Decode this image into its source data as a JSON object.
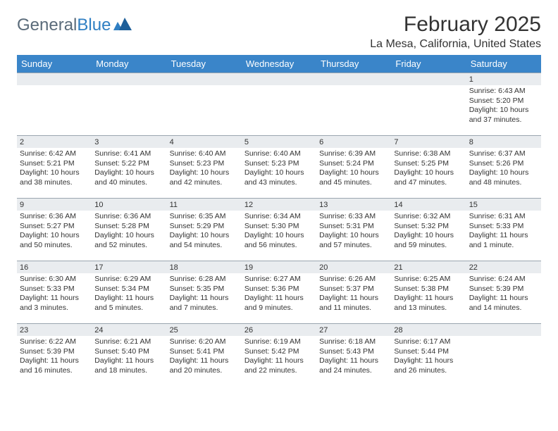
{
  "logo": {
    "text1": "General",
    "text2": "Blue"
  },
  "title": "February 2025",
  "location": "La Mesa, California, United States",
  "header_bg": "#3a85c9",
  "daynum_bg": "#e9ecef",
  "border_color": "#9aa5af",
  "day_names": [
    "Sunday",
    "Monday",
    "Tuesday",
    "Wednesday",
    "Thursday",
    "Friday",
    "Saturday"
  ],
  "weeks": [
    [
      {
        "n": "",
        "sr": "",
        "ss": "",
        "dl": ""
      },
      {
        "n": "",
        "sr": "",
        "ss": "",
        "dl": ""
      },
      {
        "n": "",
        "sr": "",
        "ss": "",
        "dl": ""
      },
      {
        "n": "",
        "sr": "",
        "ss": "",
        "dl": ""
      },
      {
        "n": "",
        "sr": "",
        "ss": "",
        "dl": ""
      },
      {
        "n": "",
        "sr": "",
        "ss": "",
        "dl": ""
      },
      {
        "n": "1",
        "sr": "Sunrise: 6:43 AM",
        "ss": "Sunset: 5:20 PM",
        "dl": "Daylight: 10 hours and 37 minutes."
      }
    ],
    [
      {
        "n": "2",
        "sr": "Sunrise: 6:42 AM",
        "ss": "Sunset: 5:21 PM",
        "dl": "Daylight: 10 hours and 38 minutes."
      },
      {
        "n": "3",
        "sr": "Sunrise: 6:41 AM",
        "ss": "Sunset: 5:22 PM",
        "dl": "Daylight: 10 hours and 40 minutes."
      },
      {
        "n": "4",
        "sr": "Sunrise: 6:40 AM",
        "ss": "Sunset: 5:23 PM",
        "dl": "Daylight: 10 hours and 42 minutes."
      },
      {
        "n": "5",
        "sr": "Sunrise: 6:40 AM",
        "ss": "Sunset: 5:23 PM",
        "dl": "Daylight: 10 hours and 43 minutes."
      },
      {
        "n": "6",
        "sr": "Sunrise: 6:39 AM",
        "ss": "Sunset: 5:24 PM",
        "dl": "Daylight: 10 hours and 45 minutes."
      },
      {
        "n": "7",
        "sr": "Sunrise: 6:38 AM",
        "ss": "Sunset: 5:25 PM",
        "dl": "Daylight: 10 hours and 47 minutes."
      },
      {
        "n": "8",
        "sr": "Sunrise: 6:37 AM",
        "ss": "Sunset: 5:26 PM",
        "dl": "Daylight: 10 hours and 48 minutes."
      }
    ],
    [
      {
        "n": "9",
        "sr": "Sunrise: 6:36 AM",
        "ss": "Sunset: 5:27 PM",
        "dl": "Daylight: 10 hours and 50 minutes."
      },
      {
        "n": "10",
        "sr": "Sunrise: 6:36 AM",
        "ss": "Sunset: 5:28 PM",
        "dl": "Daylight: 10 hours and 52 minutes."
      },
      {
        "n": "11",
        "sr": "Sunrise: 6:35 AM",
        "ss": "Sunset: 5:29 PM",
        "dl": "Daylight: 10 hours and 54 minutes."
      },
      {
        "n": "12",
        "sr": "Sunrise: 6:34 AM",
        "ss": "Sunset: 5:30 PM",
        "dl": "Daylight: 10 hours and 56 minutes."
      },
      {
        "n": "13",
        "sr": "Sunrise: 6:33 AM",
        "ss": "Sunset: 5:31 PM",
        "dl": "Daylight: 10 hours and 57 minutes."
      },
      {
        "n": "14",
        "sr": "Sunrise: 6:32 AM",
        "ss": "Sunset: 5:32 PM",
        "dl": "Daylight: 10 hours and 59 minutes."
      },
      {
        "n": "15",
        "sr": "Sunrise: 6:31 AM",
        "ss": "Sunset: 5:33 PM",
        "dl": "Daylight: 11 hours and 1 minute."
      }
    ],
    [
      {
        "n": "16",
        "sr": "Sunrise: 6:30 AM",
        "ss": "Sunset: 5:33 PM",
        "dl": "Daylight: 11 hours and 3 minutes."
      },
      {
        "n": "17",
        "sr": "Sunrise: 6:29 AM",
        "ss": "Sunset: 5:34 PM",
        "dl": "Daylight: 11 hours and 5 minutes."
      },
      {
        "n": "18",
        "sr": "Sunrise: 6:28 AM",
        "ss": "Sunset: 5:35 PM",
        "dl": "Daylight: 11 hours and 7 minutes."
      },
      {
        "n": "19",
        "sr": "Sunrise: 6:27 AM",
        "ss": "Sunset: 5:36 PM",
        "dl": "Daylight: 11 hours and 9 minutes."
      },
      {
        "n": "20",
        "sr": "Sunrise: 6:26 AM",
        "ss": "Sunset: 5:37 PM",
        "dl": "Daylight: 11 hours and 11 minutes."
      },
      {
        "n": "21",
        "sr": "Sunrise: 6:25 AM",
        "ss": "Sunset: 5:38 PM",
        "dl": "Daylight: 11 hours and 13 minutes."
      },
      {
        "n": "22",
        "sr": "Sunrise: 6:24 AM",
        "ss": "Sunset: 5:39 PM",
        "dl": "Daylight: 11 hours and 14 minutes."
      }
    ],
    [
      {
        "n": "23",
        "sr": "Sunrise: 6:22 AM",
        "ss": "Sunset: 5:39 PM",
        "dl": "Daylight: 11 hours and 16 minutes."
      },
      {
        "n": "24",
        "sr": "Sunrise: 6:21 AM",
        "ss": "Sunset: 5:40 PM",
        "dl": "Daylight: 11 hours and 18 minutes."
      },
      {
        "n": "25",
        "sr": "Sunrise: 6:20 AM",
        "ss": "Sunset: 5:41 PM",
        "dl": "Daylight: 11 hours and 20 minutes."
      },
      {
        "n": "26",
        "sr": "Sunrise: 6:19 AM",
        "ss": "Sunset: 5:42 PM",
        "dl": "Daylight: 11 hours and 22 minutes."
      },
      {
        "n": "27",
        "sr": "Sunrise: 6:18 AM",
        "ss": "Sunset: 5:43 PM",
        "dl": "Daylight: 11 hours and 24 minutes."
      },
      {
        "n": "28",
        "sr": "Sunrise: 6:17 AM",
        "ss": "Sunset: 5:44 PM",
        "dl": "Daylight: 11 hours and 26 minutes."
      },
      {
        "n": "",
        "sr": "",
        "ss": "",
        "dl": ""
      }
    ]
  ]
}
